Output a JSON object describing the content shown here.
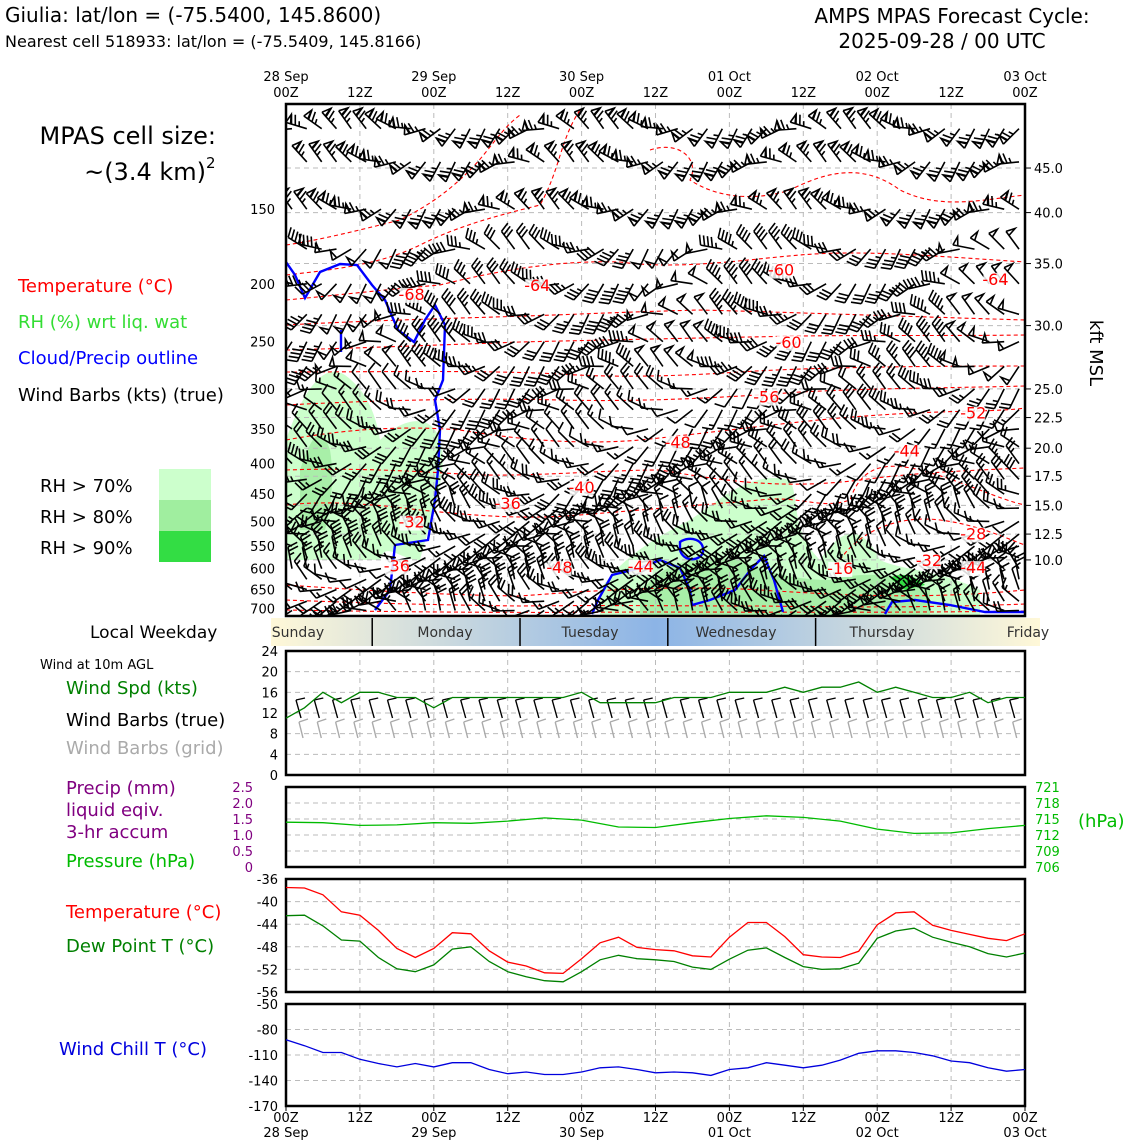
{
  "header": {
    "location_line": "Giulia: lat/lon = (-75.5400, 145.8600)",
    "cell_line": "Nearest cell 518933: lat/lon = (-75.5409, 145.8166)",
    "cycle_title": "AMPS MPAS Forecast Cycle:",
    "cycle_time": "2025-09-28 / 00 UTC"
  },
  "left_panel": {
    "cell_size_label": "MPAS cell size:",
    "cell_size_value": "~(3.4 km)",
    "cell_size_exp": "2",
    "legend_temperature": "Temperature (°C)",
    "legend_rh": "RH (%) wrt liq. wat",
    "legend_cloud": "Cloud/Precip outline",
    "legend_barbs": "Wind Barbs (kts) (true)",
    "rh_70": "RH > 70%",
    "rh_80": "RH > 80%",
    "rh_90": "RH > 90%",
    "local_weekday": "Local Weekday",
    "wind_10m": "Wind at 10m AGL",
    "wind_spd": "Wind Spd (kts)",
    "wind_barbs_true": "Wind Barbs (true)",
    "wind_barbs_grid": "Wind Barbs (grid)",
    "precip_1": "Precip (mm)",
    "precip_2": "liquid eqiv.",
    "precip_3": "3-hr accum",
    "pressure": "Pressure (hPa)",
    "temp": "Temperature (°C)",
    "dewpoint": "Dew Point T (°C)",
    "windchill": "Wind Chill T (°C)"
  },
  "colors": {
    "temperature": "#ff0000",
    "rh": "#33dd33",
    "cloud": "#0000ff",
    "pressure": "#00bb00",
    "precip": "#800080",
    "dewpoint": "#008000",
    "windchill": "#0000dd",
    "rh70": "#ccffcc",
    "rh80": "#a0ee9f",
    "rh90": "#33dd44"
  },
  "time_axis": {
    "ticks": [
      "00Z",
      "12Z",
      "00Z",
      "12Z",
      "00Z",
      "12Z",
      "00Z",
      "12Z",
      "00Z",
      "12Z",
      "00Z"
    ],
    "dates": [
      "28 Sep",
      "",
      "29 Sep",
      "",
      "30 Sep",
      "",
      "01 Oct",
      "",
      "02 Oct",
      "",
      "03 Oct"
    ]
  },
  "weekdays": [
    "Sunday",
    "Monday",
    "Tuesday",
    "Wednesday",
    "Thursday",
    "Friday"
  ],
  "chart_data": [
    {
      "type": "contour",
      "name": "cross-section",
      "y_ticks_hpa": [
        150,
        200,
        250,
        300,
        350,
        400,
        450,
        500,
        550,
        600,
        650,
        700
      ],
      "y_ticks_kft": [
        "45.0",
        "40.0",
        "35.0",
        "30.0",
        "25.0",
        "22.5",
        "20.0",
        "17.5",
        "15.0",
        "12.5",
        "10.0"
      ],
      "y_kft_positions_hpa": [
        128,
        152,
        185,
        235,
        300,
        335,
        377,
        420,
        470,
        525,
        580
      ],
      "right_label": "kft MSL",
      "temperature_labels": [
        {
          "v": "-68",
          "t": 17,
          "p": 212
        },
        {
          "v": "-64",
          "t": 34,
          "p": 205
        },
        {
          "v": "-60",
          "t": 67,
          "p": 193
        },
        {
          "v": "-60",
          "t": 68,
          "p": 255
        },
        {
          "v": "-64",
          "t": 96,
          "p": 200
        },
        {
          "v": "-56",
          "t": 65,
          "p": 315
        },
        {
          "v": "-52",
          "t": 93,
          "p": 335
        },
        {
          "v": "-48",
          "t": 53,
          "p": 375
        },
        {
          "v": "-44",
          "t": 84,
          "p": 388
        },
        {
          "v": "-40",
          "t": 40,
          "p": 446
        },
        {
          "v": "-36",
          "t": 30,
          "p": 475
        },
        {
          "v": "-32",
          "t": 17,
          "p": 510
        },
        {
          "v": "-28",
          "t": 93,
          "p": 534
        },
        {
          "v": "-32",
          "t": 87,
          "p": 592
        },
        {
          "v": "-36",
          "t": 15,
          "p": 604
        },
        {
          "v": "-48",
          "t": 37,
          "p": 608
        },
        {
          "v": "-44",
          "t": 48,
          "p": 605
        },
        {
          "v": "-16",
          "t": 75,
          "p": 610
        },
        {
          "v": "-44",
          "t": 93,
          "p": 608
        }
      ]
    },
    {
      "type": "line",
      "name": "wind-speed-10m",
      "y_ticks": [
        0,
        4,
        8,
        12,
        16,
        20,
        24
      ],
      "ylim": [
        0,
        24
      ],
      "x_hours": [
        0,
        3,
        6,
        9,
        12,
        15,
        18,
        21,
        24,
        27,
        30,
        33,
        36,
        39,
        42,
        45,
        48,
        51,
        54,
        57,
        60,
        63,
        66,
        69,
        72,
        75,
        78,
        81,
        84,
        87,
        90,
        93,
        96,
        99,
        102,
        105,
        108,
        111,
        114,
        117,
        120
      ],
      "values": [
        11,
        13,
        16,
        14,
        16,
        16,
        15,
        15,
        13,
        15,
        15,
        15,
        15,
        15,
        15,
        15,
        16,
        14,
        14,
        14,
        14,
        15,
        15,
        15,
        16,
        16,
        16,
        17,
        16,
        17,
        17,
        18,
        16,
        17,
        16,
        15,
        15,
        16,
        14,
        15,
        15
      ]
    },
    {
      "type": "line",
      "name": "precip-pressure",
      "left_ticks": [
        "2.5",
        "2.0",
        "1.5",
        "1.0",
        "0.5",
        "0"
      ],
      "right_ticks": [
        "721",
        "718",
        "715",
        "712",
        "709",
        "706"
      ],
      "right_label": "(hPa)",
      "pressure_ylim": [
        706,
        721
      ],
      "x_hours": [
        0,
        6,
        12,
        18,
        24,
        30,
        36,
        42,
        48,
        54,
        60,
        66,
        72,
        78,
        84,
        90,
        96,
        102,
        108,
        114,
        120
      ],
      "pressure": [
        714.4,
        714.3,
        713.8,
        713.9,
        714.3,
        714.2,
        714.6,
        715.2,
        714.8,
        713.5,
        713.4,
        714.3,
        715.1,
        715.6,
        715.3,
        714.6,
        713.1,
        712.3,
        712.4,
        713.2,
        713.8
      ]
    },
    {
      "type": "line",
      "name": "temperature-dewpoint",
      "y_ticks": [
        -36,
        -40,
        -44,
        -48,
        -52,
        -56
      ],
      "ylim": [
        -56,
        -36
      ],
      "x_hours": [
        0,
        3,
        6,
        9,
        12,
        15,
        18,
        21,
        24,
        27,
        30,
        33,
        36,
        39,
        42,
        45,
        48,
        51,
        54,
        57,
        60,
        63,
        66,
        69,
        72,
        75,
        78,
        81,
        84,
        87,
        90,
        93,
        96,
        99,
        102,
        105,
        108,
        111,
        114,
        117,
        120
      ],
      "temperature": [
        -37.5,
        -37.6,
        -38.8,
        -41.8,
        -42.4,
        -45.1,
        -48.3,
        -49.9,
        -48.3,
        -45.5,
        -45.7,
        -48.7,
        -50.7,
        -51.4,
        -52.6,
        -52.7,
        -50.1,
        -47.3,
        -46.3,
        -48.1,
        -48.5,
        -48.7,
        -49.6,
        -49.8,
        -46.3,
        -43.7,
        -43.7,
        -46.2,
        -49.4,
        -49.8,
        -49.9,
        -48.8,
        -44.1,
        -42.0,
        -41.8,
        -44.2,
        -45.1,
        -45.8,
        -46.5,
        -46.9,
        -45.7
      ],
      "dewpoint": [
        -42.5,
        -42.4,
        -44.3,
        -46.8,
        -47.0,
        -49.9,
        -51.9,
        -52.4,
        -51.2,
        -48.4,
        -48.0,
        -50.6,
        -52.4,
        -53.3,
        -54.0,
        -54.2,
        -52.4,
        -50.3,
        -49.5,
        -50.1,
        -50.3,
        -50.6,
        -51.6,
        -52.0,
        -50.2,
        -48.6,
        -48.2,
        -49.9,
        -51.5,
        -52.0,
        -51.9,
        -50.9,
        -46.5,
        -45.2,
        -44.7,
        -46.3,
        -47.2,
        -48.0,
        -49.2,
        -49.8,
        -49.1
      ]
    },
    {
      "type": "line",
      "name": "wind-chill",
      "y_ticks": [
        -50,
        -80,
        -110,
        -140,
        -170
      ],
      "ylim": [
        -170,
        -50
      ],
      "x_hours": [
        0,
        3,
        6,
        9,
        12,
        15,
        18,
        21,
        24,
        27,
        30,
        33,
        36,
        39,
        42,
        45,
        48,
        51,
        54,
        57,
        60,
        63,
        66,
        69,
        72,
        75,
        78,
        81,
        84,
        87,
        90,
        93,
        96,
        99,
        102,
        105,
        108,
        111,
        114,
        117,
        120
      ],
      "values": [
        -92,
        -99,
        -107,
        -107,
        -115,
        -120,
        -124,
        -120,
        -124,
        -119,
        -119,
        -127,
        -132,
        -130,
        -133,
        -133,
        -130,
        -125,
        -124,
        -127,
        -131,
        -130,
        -131,
        -134,
        -127,
        -125,
        -119,
        -122,
        -125,
        -122,
        -116,
        -108,
        -105,
        -105,
        -107,
        -111,
        -117,
        -119,
        -125,
        -129,
        -127
      ]
    }
  ]
}
